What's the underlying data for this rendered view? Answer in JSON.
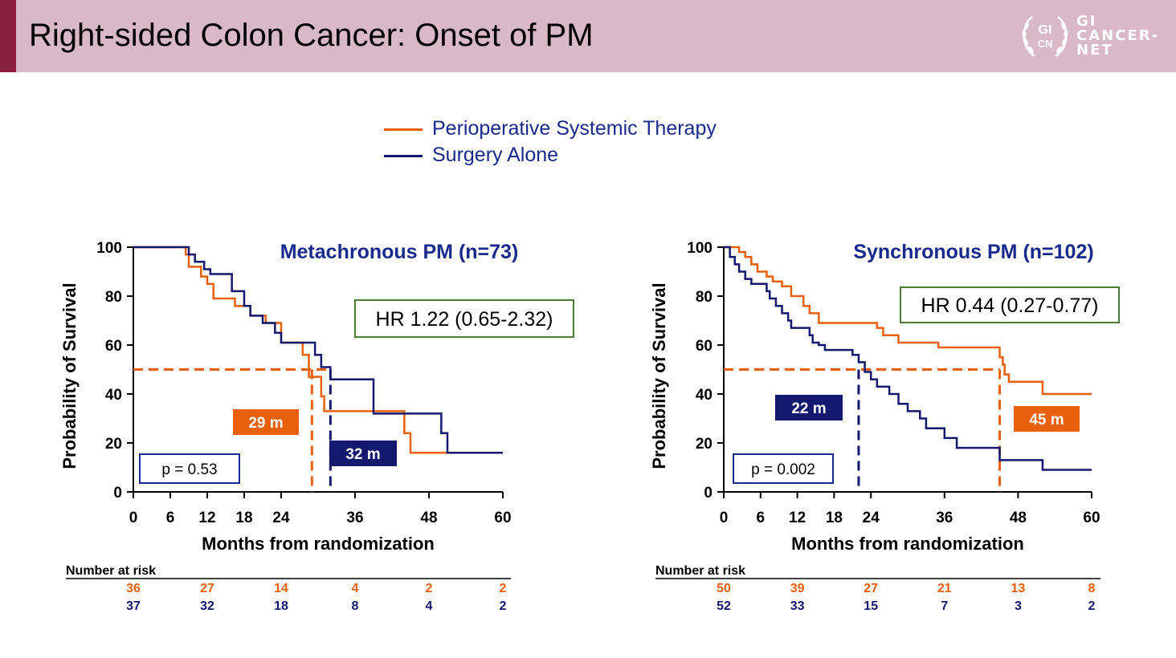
{
  "slide": {
    "title": "Right-sided Colon Cancer: Onset of PM",
    "logo": {
      "mark_text": "GI\nCN",
      "lines": [
        "GI",
        "CANCER-",
        "NET"
      ]
    }
  },
  "legend": {
    "items": [
      {
        "label": "Perioperative Systemic Therapy",
        "color": "#e8600c"
      },
      {
        "label": "Surgery Alone",
        "color": "#14186e"
      }
    ]
  },
  "chart_data": [
    {
      "type": "line",
      "title": "Metachronous PM (n=73)",
      "xlabel": "Months from randomization",
      "ylabel": "Probability of Survival",
      "xlim": [
        0,
        60
      ],
      "ylim": [
        0,
        100
      ],
      "xticks": [
        0,
        6,
        12,
        18,
        24,
        36,
        48,
        60
      ],
      "yticks": [
        0,
        20,
        40,
        60,
        80,
        100
      ],
      "grid": false,
      "hr_text": "HR 1.22 (0.65-2.32)",
      "p_text": "p = 0.53",
      "series": [
        {
          "name": "Perioperative Systemic Therapy",
          "color": "#e8600c",
          "median_months": 29,
          "median_label": "29 m",
          "steps": [
            [
              0,
              100
            ],
            [
              8.5,
              97
            ],
            [
              9,
              92
            ],
            [
              11,
              88
            ],
            [
              12,
              85
            ],
            [
              13,
              79
            ],
            [
              16.5,
              76
            ],
            [
              19,
              72
            ],
            [
              21.5,
              69
            ],
            [
              24,
              61
            ],
            [
              27.5,
              56
            ],
            [
              28.5,
              47
            ],
            [
              30.5,
              39
            ],
            [
              31,
              33
            ],
            [
              44,
              24
            ],
            [
              45,
              16
            ],
            [
              60,
              16
            ]
          ]
        },
        {
          "name": "Surgery Alone",
          "color": "#14186e",
          "median_months": 32,
          "median_label": "32 m",
          "steps": [
            [
              0,
              100
            ],
            [
              9,
              97
            ],
            [
              10,
              94
            ],
            [
              11.5,
              91
            ],
            [
              12.5,
              89
            ],
            [
              16,
              82
            ],
            [
              18,
              76
            ],
            [
              19,
              72
            ],
            [
              21,
              69
            ],
            [
              23,
              65
            ],
            [
              24,
              61
            ],
            [
              29.5,
              56
            ],
            [
              30.5,
              51
            ],
            [
              32,
              46
            ],
            [
              39,
              32
            ],
            [
              50,
              24
            ],
            [
              51,
              16
            ],
            [
              60,
              16
            ]
          ]
        }
      ],
      "median_y": 50,
      "number_at_risk": {
        "label": "Number at risk",
        "times": [
          0,
          12,
          24,
          36,
          48,
          60
        ],
        "rows": [
          {
            "color": "#e8600c",
            "values": [
              "36",
              "27",
              "14",
              "4",
              "2",
              "2"
            ]
          },
          {
            "color": "#14186e",
            "values": [
              "37",
              "32",
              "18",
              "8",
              "4",
              "2"
            ]
          }
        ]
      }
    },
    {
      "type": "line",
      "title": "Synchronous PM (n=102)",
      "xlabel": "Months from randomization",
      "ylabel": "Probability of Survival",
      "xlim": [
        0,
        60
      ],
      "ylim": [
        0,
        100
      ],
      "xticks": [
        0,
        6,
        12,
        18,
        24,
        36,
        48,
        60
      ],
      "yticks": [
        0,
        20,
        40,
        60,
        80,
        100
      ],
      "grid": false,
      "hr_text": "HR 0.44 (0.27-0.77)",
      "p_text": "p = 0.002",
      "series": [
        {
          "name": "Perioperative Systemic Therapy",
          "color": "#e8600c",
          "median_months": 45,
          "median_label": "45 m",
          "steps": [
            [
              0,
              100
            ],
            [
              2.5,
              98
            ],
            [
              3.5,
              96
            ],
            [
              4.5,
              93
            ],
            [
              5.5,
              90
            ],
            [
              7,
              88
            ],
            [
              8,
              86
            ],
            [
              9.5,
              84
            ],
            [
              11,
              80
            ],
            [
              13,
              76
            ],
            [
              14,
              73
            ],
            [
              15.5,
              69
            ],
            [
              25,
              67
            ],
            [
              26,
              64
            ],
            [
              28.5,
              61
            ],
            [
              35,
              59
            ],
            [
              45,
              55
            ],
            [
              45.5,
              52
            ],
            [
              45.8,
              48
            ],
            [
              46.5,
              45
            ],
            [
              52,
              40
            ],
            [
              60,
              40
            ]
          ]
        },
        {
          "name": "Surgery Alone",
          "color": "#14186e",
          "median_months": 22,
          "median_label": "22 m",
          "steps": [
            [
              0,
              100
            ],
            [
              1,
              96
            ],
            [
              1.8,
              93
            ],
            [
              2.5,
              90
            ],
            [
              3.5,
              87
            ],
            [
              4.5,
              85
            ],
            [
              7,
              82
            ],
            [
              7.5,
              79
            ],
            [
              8.5,
              76
            ],
            [
              9.5,
              73
            ],
            [
              10.5,
              70
            ],
            [
              11,
              67
            ],
            [
              14,
              64
            ],
            [
              14.5,
              61
            ],
            [
              15.5,
              60
            ],
            [
              16.5,
              58
            ],
            [
              21,
              56
            ],
            [
              22,
              53
            ],
            [
              23,
              49
            ],
            [
              24,
              46
            ],
            [
              25,
              43
            ],
            [
              27,
              40
            ],
            [
              28.5,
              36
            ],
            [
              30,
              33
            ],
            [
              32,
              30
            ],
            [
              33,
              26
            ],
            [
              36,
              22
            ],
            [
              38,
              18
            ],
            [
              45,
              13
            ],
            [
              52,
              9
            ],
            [
              60,
              9
            ]
          ]
        }
      ],
      "median_y": 50,
      "number_at_risk": {
        "label": "Number at risk",
        "times": [
          0,
          12,
          24,
          36,
          48,
          60
        ],
        "rows": [
          {
            "color": "#e8600c",
            "values": [
              "50",
              "39",
              "27",
              "21",
              "13",
              "8"
            ]
          },
          {
            "color": "#14186e",
            "values": [
              "52",
              "33",
              "15",
              "7",
              "3",
              "2"
            ]
          }
        ]
      }
    }
  ]
}
